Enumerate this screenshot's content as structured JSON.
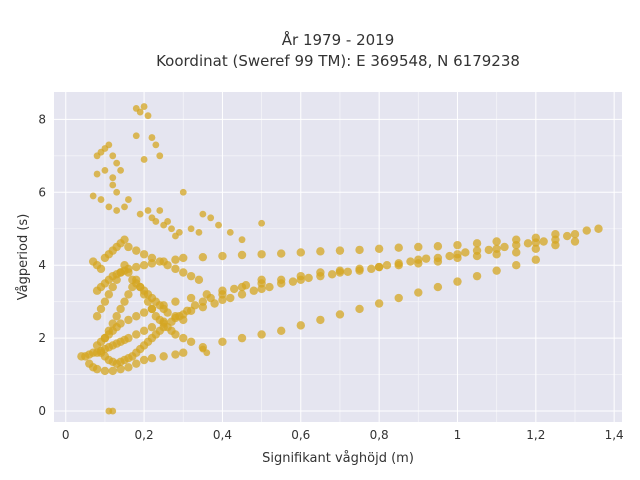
{
  "chart_data": {
    "type": "scatter",
    "title_lines": [
      "År 1979 - 2019",
      "Koordinat (Sweref 99 TM): E 369548, N 6179238"
    ],
    "xlabel": "Signifikant våghöjd (m)",
    "ylabel": "Vågperiod (s)",
    "xlim": [
      -0.03,
      1.42
    ],
    "ylim": [
      -0.3,
      8.75
    ],
    "x_ticks": [
      0,
      0.2,
      0.4,
      0.6,
      0.8,
      1.0,
      1.2,
      1.4
    ],
    "x_tick_labels": [
      "0",
      "0,2",
      "0,4",
      "0,6",
      "0,8",
      "1",
      "1,2",
      "1,4"
    ],
    "y_ticks": [
      0,
      2,
      4,
      6,
      8
    ],
    "y_tick_labels": [
      "0",
      "2",
      "4",
      "6",
      "8"
    ],
    "grid": true,
    "marker_color": "#d4a521",
    "background_color": "#e5e5f0",
    "series": [
      {
        "name": "",
        "x": [
          0.04,
          0.05,
          0.06,
          0.07,
          0.08,
          0.09,
          0.1,
          0.11,
          0.12,
          0.13,
          0.14,
          0.15,
          0.16,
          0.18,
          0.2,
          0.22,
          0.25,
          0.28,
          0.3,
          0.32,
          0.35,
          0.38,
          0.4,
          0.42,
          0.45,
          0.48,
          0.5,
          0.52,
          0.55,
          0.58,
          0.6,
          0.62,
          0.65,
          0.68,
          0.7,
          0.72,
          0.75,
          0.78,
          0.8,
          0.82,
          0.85,
          0.88,
          0.9,
          0.92,
          0.95,
          0.98,
          1.0,
          1.02,
          1.05,
          1.08,
          1.1,
          1.12,
          1.15,
          1.18,
          1.2,
          1.22,
          1.25,
          1.28,
          1.3,
          1.33,
          1.36,
          0.08,
          0.09,
          0.1,
          0.11,
          0.12,
          0.13,
          0.14,
          0.15,
          0.16,
          0.18,
          0.2,
          0.22,
          0.25,
          0.28,
          0.3,
          0.35,
          0.4,
          0.45,
          0.5,
          0.55,
          0.6,
          0.65,
          0.7,
          0.75,
          0.8,
          0.85,
          0.9,
          0.95,
          1.0,
          1.05,
          1.1,
          1.15,
          1.2,
          1.25,
          0.06,
          0.07,
          0.08,
          0.1,
          0.12,
          0.14,
          0.16,
          0.18,
          0.2,
          0.22,
          0.25,
          0.28,
          0.3,
          0.35,
          0.4,
          0.45,
          0.5,
          0.55,
          0.6,
          0.65,
          0.7,
          0.75,
          0.8,
          0.85,
          0.9,
          0.95,
          1.0,
          1.05,
          1.1,
          1.15,
          1.2,
          0.1,
          0.11,
          0.12,
          0.13,
          0.14,
          0.15,
          0.16,
          0.17,
          0.18,
          0.19,
          0.2,
          0.21,
          0.22,
          0.23,
          0.24,
          0.25,
          0.26,
          0.27,
          0.28,
          0.3,
          0.32,
          0.08,
          0.09,
          0.1,
          0.11,
          0.12,
          0.13,
          0.14,
          0.15,
          0.16,
          0.17,
          0.18,
          0.19,
          0.2,
          0.21,
          0.22,
          0.23,
          0.24,
          0.25,
          0.26,
          0.28,
          0.3,
          0.07,
          0.08,
          0.09,
          0.1,
          0.11,
          0.12,
          0.13,
          0.14,
          0.15,
          0.16,
          0.18,
          0.2,
          0.22,
          0.24,
          0.26,
          0.28,
          0.3,
          0.32,
          0.34,
          0.09,
          0.1,
          0.11,
          0.12,
          0.13,
          0.14,
          0.15,
          0.16,
          0.17,
          0.18,
          0.19,
          0.2,
          0.21,
          0.22,
          0.23,
          0.24,
          0.25,
          0.27,
          0.29,
          0.31,
          0.33,
          0.35,
          0.37,
          0.4,
          0.43,
          0.46,
          0.5,
          0.08,
          0.09,
          0.1,
          0.11,
          0.12,
          0.13,
          0.14,
          0.16,
          0.18,
          0.2,
          0.22,
          0.25,
          0.28,
          0.32,
          0.36,
          0.4,
          0.45,
          0.5,
          0.55,
          0.6,
          0.65,
          0.7,
          0.75,
          0.8,
          0.85,
          0.9,
          0.95,
          1.0,
          1.05,
          1.1,
          1.15,
          1.2,
          1.25,
          1.3
        ],
        "y": [
          1.5,
          1.5,
          1.55,
          1.6,
          1.6,
          1.65,
          1.7,
          1.75,
          1.8,
          1.85,
          1.9,
          1.95,
          2.0,
          2.1,
          2.2,
          2.3,
          2.45,
          2.55,
          2.65,
          2.75,
          2.85,
          2.95,
          3.05,
          3.1,
          3.2,
          3.3,
          3.35,
          3.4,
          3.5,
          3.55,
          3.6,
          3.65,
          3.7,
          3.75,
          3.8,
          3.82,
          3.85,
          3.9,
          3.95,
          4.0,
          4.05,
          4.1,
          4.15,
          4.18,
          4.2,
          4.25,
          4.3,
          4.35,
          4.4,
          4.42,
          4.45,
          4.5,
          4.55,
          4.6,
          4.62,
          4.65,
          4.7,
          4.8,
          4.85,
          4.95,
          5.0,
          3.3,
          3.4,
          3.5,
          3.6,
          3.7,
          3.75,
          3.8,
          3.85,
          3.9,
          3.95,
          4.0,
          4.05,
          4.1,
          4.15,
          4.2,
          4.22,
          4.25,
          4.28,
          4.3,
          4.32,
          4.35,
          4.38,
          4.4,
          4.42,
          4.45,
          4.48,
          4.5,
          4.52,
          4.55,
          4.6,
          4.65,
          4.7,
          4.75,
          4.85,
          1.3,
          1.2,
          1.15,
          1.1,
          1.1,
          1.15,
          1.2,
          1.3,
          1.4,
          1.45,
          1.5,
          1.55,
          1.6,
          1.75,
          1.9,
          2.0,
          2.1,
          2.2,
          2.35,
          2.5,
          2.65,
          2.8,
          2.95,
          3.1,
          3.25,
          3.4,
          3.55,
          3.7,
          3.85,
          4.0,
          4.15,
          2.0,
          2.2,
          2.4,
          2.6,
          2.8,
          3.0,
          3.2,
          3.4,
          3.6,
          3.4,
          3.2,
          3.0,
          2.8,
          2.6,
          2.5,
          2.4,
          2.3,
          2.2,
          2.1,
          2.0,
          1.9,
          2.6,
          2.8,
          3.0,
          3.2,
          3.4,
          3.6,
          3.8,
          4.0,
          3.8,
          3.6,
          3.5,
          3.4,
          3.3,
          3.2,
          3.1,
          3.0,
          2.9,
          2.8,
          2.7,
          2.6,
          2.5,
          4.1,
          4.0,
          3.9,
          4.2,
          4.3,
          4.4,
          4.5,
          4.6,
          4.7,
          4.5,
          4.4,
          4.3,
          4.2,
          4.1,
          4.0,
          3.9,
          3.8,
          3.7,
          3.6,
          1.6,
          1.5,
          1.4,
          1.35,
          1.3,
          1.35,
          1.4,
          1.45,
          1.5,
          1.6,
          1.7,
          1.8,
          1.9,
          2.0,
          2.1,
          2.2,
          2.3,
          2.45,
          2.6,
          2.75,
          2.9,
          3.0,
          3.1,
          3.2,
          3.35,
          3.45,
          3.6,
          1.8,
          1.9,
          2.0,
          2.1,
          2.2,
          2.3,
          2.4,
          2.5,
          2.6,
          2.7,
          2.8,
          2.9,
          3.0,
          3.1,
          3.2,
          3.3,
          3.4,
          3.5,
          3.6,
          3.7,
          3.8,
          3.85,
          3.9,
          3.95,
          4.0,
          4.05,
          4.1,
          4.2,
          4.25,
          4.3,
          4.35,
          4.45,
          4.55,
          4.65
        ]
      },
      {
        "name": "",
        "x": [
          0.08,
          0.09,
          0.1,
          0.11,
          0.12,
          0.13,
          0.14,
          0.08,
          0.1,
          0.12,
          0.07,
          0.09,
          0.11,
          0.13,
          0.15,
          0.16,
          0.18,
          0.19,
          0.2,
          0.21,
          0.22,
          0.23,
          0.24,
          0.2,
          0.19,
          0.21,
          0.22,
          0.23,
          0.24,
          0.25,
          0.26,
          0.27,
          0.28,
          0.29,
          0.3,
          0.32,
          0.34,
          0.35,
          0.37,
          0.39,
          0.42,
          0.45,
          0.5,
          0.35,
          0.36,
          0.18,
          0.12,
          0.11,
          0.12,
          0.13
        ],
        "y": [
          7.0,
          7.1,
          7.2,
          7.3,
          7.0,
          6.8,
          6.6,
          6.5,
          6.6,
          6.4,
          5.9,
          5.8,
          5.6,
          5.5,
          5.6,
          5.8,
          8.3,
          8.2,
          8.35,
          8.1,
          7.5,
          7.3,
          7.0,
          6.9,
          5.4,
          5.5,
          5.3,
          5.2,
          5.5,
          5.1,
          5.2,
          5.0,
          4.8,
          4.9,
          6.0,
          5.0,
          4.9,
          5.4,
          5.3,
          5.1,
          4.9,
          4.7,
          5.15,
          1.7,
          1.6,
          7.55,
          0.0,
          0.0,
          6.2,
          6.0
        ]
      }
    ]
  }
}
